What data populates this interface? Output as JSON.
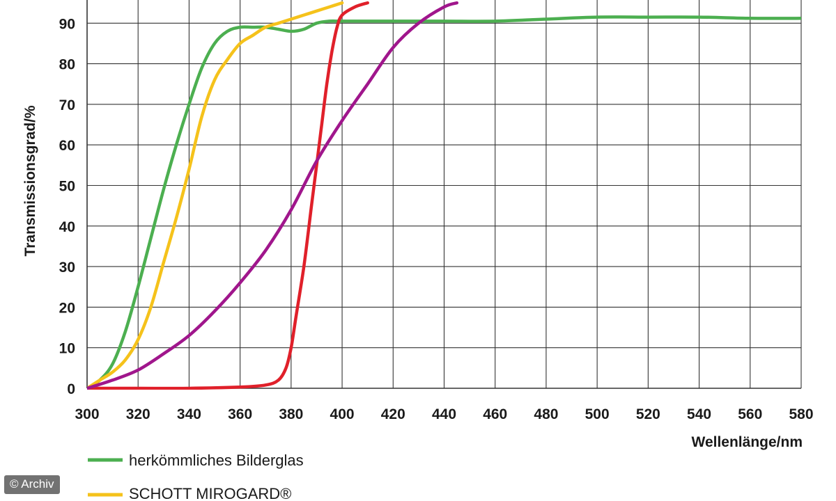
{
  "chart_data": {
    "type": "line",
    "title": "",
    "xlabel": "Wellenlänge/nm",
    "ylabel": "Transmissionsgrad/%",
    "xlim": [
      300,
      580
    ],
    "ylim": [
      0,
      95
    ],
    "xticks": [
      300,
      320,
      340,
      360,
      380,
      400,
      420,
      440,
      460,
      480,
      500,
      520,
      540,
      560,
      580
    ],
    "yticks": [
      0,
      10,
      20,
      30,
      40,
      50,
      60,
      70,
      80,
      90
    ],
    "grid": true,
    "legend_position": "bottom-left",
    "series": [
      {
        "name": "herkömmliches Bilderglas",
        "color": "#4caf50",
        "points": [
          [
            300,
            0
          ],
          [
            305,
            2
          ],
          [
            310,
            6
          ],
          [
            315,
            14
          ],
          [
            320,
            25
          ],
          [
            325,
            37
          ],
          [
            330,
            49
          ],
          [
            335,
            60
          ],
          [
            340,
            70
          ],
          [
            345,
            79
          ],
          [
            350,
            85
          ],
          [
            355,
            88
          ],
          [
            360,
            89
          ],
          [
            365,
            89
          ],
          [
            370,
            89
          ],
          [
            375,
            88.5
          ],
          [
            380,
            88
          ],
          [
            385,
            88.5
          ],
          [
            390,
            90
          ],
          [
            395,
            90.5
          ],
          [
            400,
            90.5
          ],
          [
            420,
            90.5
          ],
          [
            440,
            90.5
          ],
          [
            460,
            90.5
          ],
          [
            480,
            91
          ],
          [
            500,
            91.5
          ],
          [
            520,
            91.5
          ],
          [
            540,
            91.5
          ],
          [
            560,
            91.2
          ],
          [
            580,
            91.2
          ]
        ]
      },
      {
        "name": "SCHOTT MIROGARD®",
        "color": "#f5c21b",
        "points": [
          [
            300,
            0
          ],
          [
            305,
            2
          ],
          [
            310,
            4
          ],
          [
            315,
            7
          ],
          [
            320,
            12
          ],
          [
            325,
            20
          ],
          [
            330,
            31
          ],
          [
            335,
            42
          ],
          [
            340,
            54
          ],
          [
            345,
            67
          ],
          [
            350,
            76
          ],
          [
            355,
            81
          ],
          [
            360,
            85
          ],
          [
            365,
            87
          ],
          [
            370,
            89
          ],
          [
            375,
            90
          ],
          [
            380,
            91
          ],
          [
            385,
            92
          ],
          [
            390,
            93
          ],
          [
            395,
            94
          ],
          [
            400,
            95
          ]
        ]
      },
      {
        "name": "",
        "color": "#e0202a",
        "points": [
          [
            300,
            0
          ],
          [
            320,
            0
          ],
          [
            340,
            0
          ],
          [
            360,
            0.3
          ],
          [
            370,
            0.8
          ],
          [
            375,
            2
          ],
          [
            378,
            5
          ],
          [
            380,
            10
          ],
          [
            382,
            18
          ],
          [
            385,
            30
          ],
          [
            388,
            45
          ],
          [
            390,
            55
          ],
          [
            392,
            65
          ],
          [
            394,
            75
          ],
          [
            396,
            83
          ],
          [
            398,
            89
          ],
          [
            400,
            92
          ],
          [
            405,
            94
          ],
          [
            410,
            95
          ]
        ]
      },
      {
        "name": "",
        "color": "#a0168c",
        "points": [
          [
            300,
            0
          ],
          [
            310,
            2
          ],
          [
            320,
            4.5
          ],
          [
            330,
            8.5
          ],
          [
            340,
            13
          ],
          [
            350,
            19
          ],
          [
            360,
            26
          ],
          [
            370,
            34
          ],
          [
            380,
            44
          ],
          [
            390,
            56
          ],
          [
            400,
            66
          ],
          [
            410,
            75
          ],
          [
            420,
            84
          ],
          [
            430,
            90
          ],
          [
            440,
            94
          ],
          [
            445,
            95
          ]
        ]
      }
    ]
  },
  "credit": "© Archiv"
}
